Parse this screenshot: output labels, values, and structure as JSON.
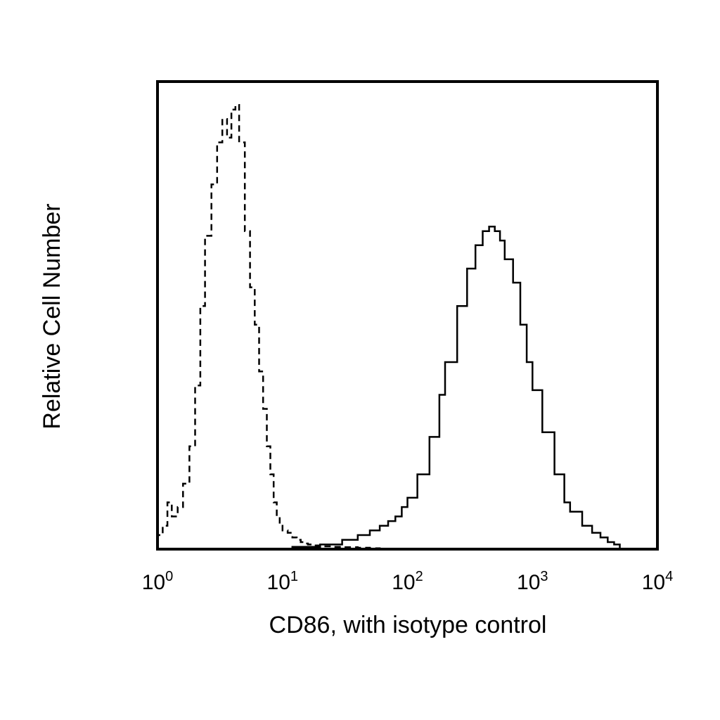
{
  "chart_data": {
    "type": "line",
    "title": "",
    "xlabel": "CD86, with isotype control",
    "ylabel": "Relative Cell Number",
    "x_scale": "log",
    "xlim": [
      1,
      10000
    ],
    "ylim": [
      0,
      100
    ],
    "x_ticks": [
      {
        "base": "10",
        "exp": "0",
        "value": 1
      },
      {
        "base": "10",
        "exp": "1",
        "value": 10
      },
      {
        "base": "10",
        "exp": "2",
        "value": 100
      },
      {
        "base": "10",
        "exp": "3",
        "value": 1000
      },
      {
        "base": "10",
        "exp": "4",
        "value": 10000
      }
    ],
    "y_ticks_shown": false,
    "grid": false,
    "legend": false,
    "series": [
      {
        "style": "dashed",
        "color": "#000000",
        "x": [
          1.0,
          1.1,
          1.2,
          1.3,
          1.45,
          1.6,
          1.8,
          2.0,
          2.2,
          2.4,
          2.7,
          3.0,
          3.3,
          3.6,
          3.9,
          4.2,
          4.5,
          5.0,
          5.5,
          6.0,
          6.5,
          7.0,
          7.5,
          8.0,
          8.5,
          9.0,
          9.5,
          10,
          11,
          12,
          13,
          14,
          15,
          16,
          18,
          20,
          25,
          30,
          40,
          50,
          60
        ],
        "y": [
          3,
          5,
          10,
          7,
          9,
          14,
          22,
          35,
          52,
          67,
          78,
          87,
          92,
          88,
          94,
          95,
          87,
          68,
          56,
          48,
          38,
          30,
          22,
          16,
          10,
          7,
          5,
          4,
          3.5,
          2.5,
          2,
          1.5,
          1.2,
          1,
          0.8,
          0.6,
          0.5,
          0.4,
          0.3,
          0.2,
          0.1
        ]
      },
      {
        "style": "solid",
        "color": "#000000",
        "x": [
          12,
          20,
          30,
          40,
          50,
          60,
          70,
          80,
          90,
          100,
          120,
          150,
          180,
          200,
          250,
          300,
          350,
          400,
          450,
          500,
          550,
          600,
          700,
          800,
          900,
          1000,
          1200,
          1500,
          1800,
          2000,
          2500,
          3000,
          3500,
          4000,
          4500,
          5000
        ],
        "y": [
          0.5,
          1,
          2,
          3,
          4,
          5,
          6,
          7,
          9,
          11,
          16,
          24,
          33,
          40,
          52,
          60,
          65,
          68,
          69,
          68,
          66,
          62,
          57,
          48,
          40,
          34,
          25,
          16,
          10,
          8,
          5,
          3.5,
          2.5,
          1.5,
          1,
          0.5
        ]
      }
    ]
  }
}
